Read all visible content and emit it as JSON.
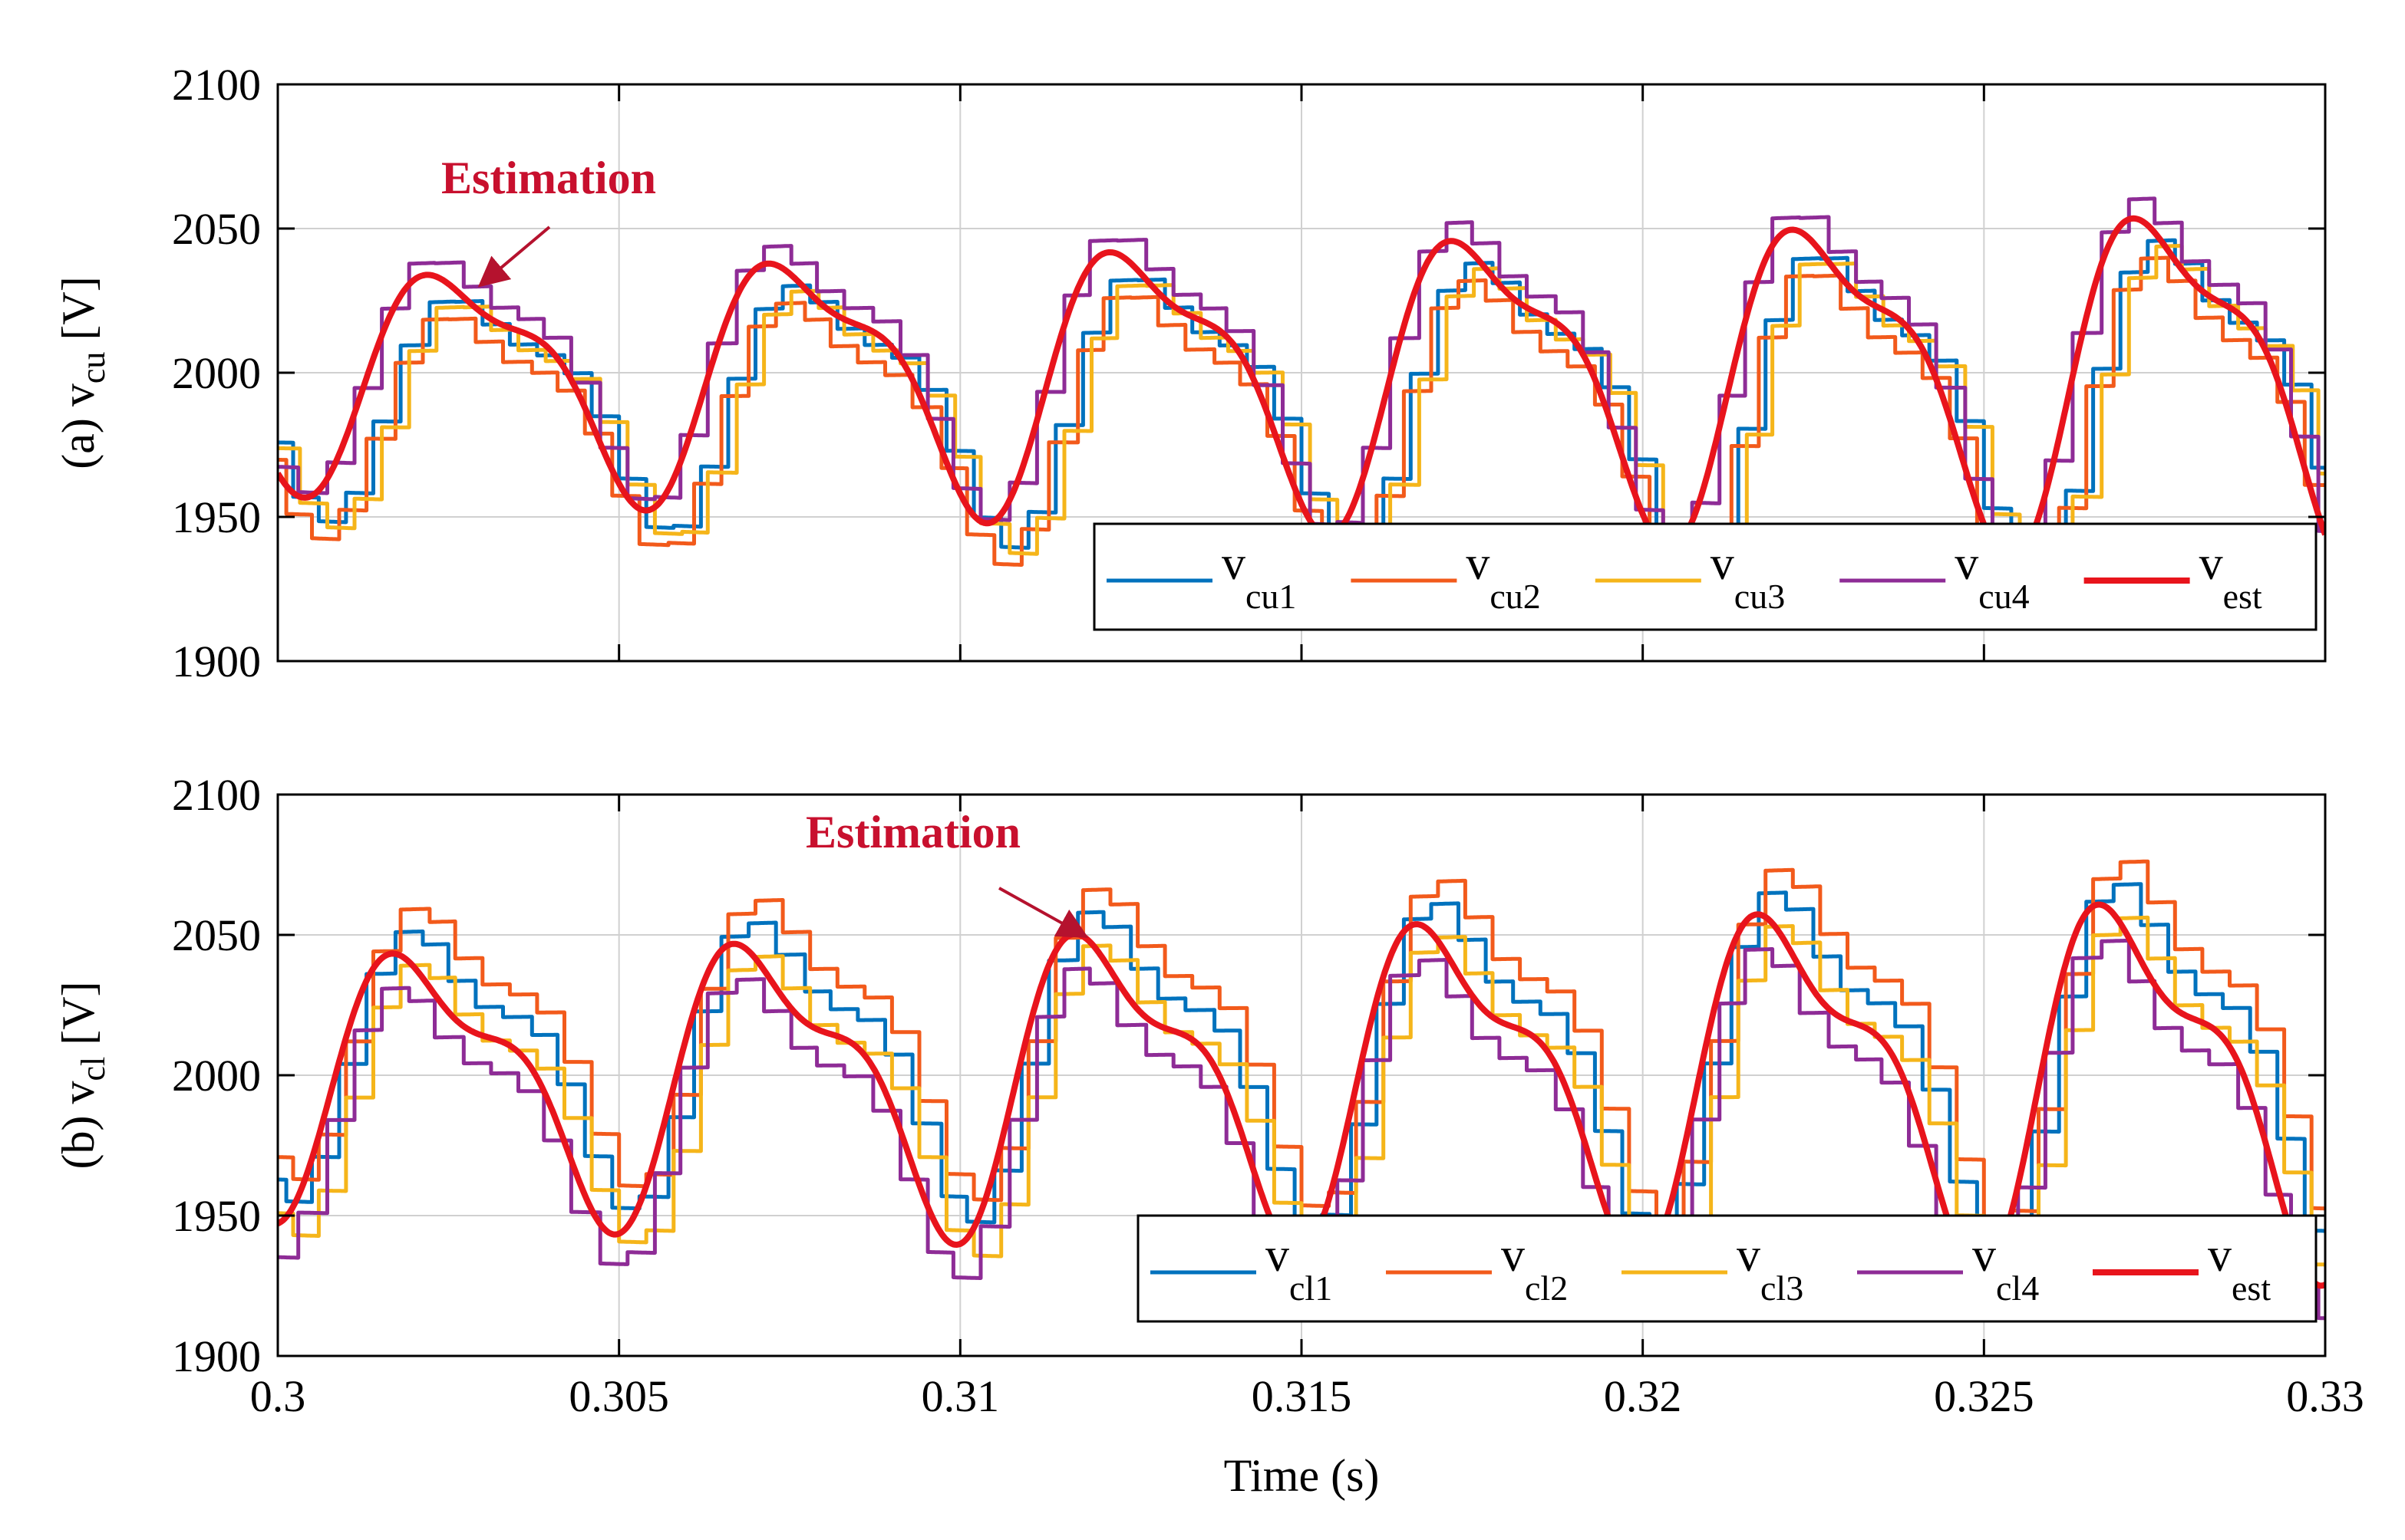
{
  "colors": {
    "s1": "#0072BD",
    "s2": "#F25A1B",
    "s3": "#F5B51A",
    "s4": "#8E2C96",
    "est": "#E8141C",
    "grid": "#d0d0d0",
    "annot": "#c8102e",
    "arrow": "#b5122e"
  },
  "chart_data": [
    {
      "type": "line",
      "panel_label": "(a)",
      "ylabel_main": "v",
      "ylabel_sub": "cu",
      "ylabel_unit": "[V]",
      "xlim": [
        0.3,
        0.33
      ],
      "ylim": [
        1900,
        2100
      ],
      "xticks": [
        0.3,
        0.305,
        0.31,
        0.315,
        0.32,
        0.325,
        0.33
      ],
      "xtick_labels": [
        "0.3",
        "0.305",
        "0.31",
        "0.315",
        "0.32",
        "0.325",
        "0.33"
      ],
      "yticks": [
        1900,
        1950,
        2000,
        2050,
        2100
      ],
      "ytick_labels": [
        "1900",
        "1950",
        "2000",
        "2050",
        "2100"
      ],
      "grid": true,
      "legend_placement": "bottom-right",
      "annotation": {
        "text": "Estimation",
        "points_to": [
          0.303,
          2031
        ]
      },
      "model": {
        "mean": 2000,
        "amp_start": 33,
        "amp_end": 55,
        "drift_start": 0,
        "drift_end": 2,
        "period": 0.005,
        "phase": 0.0027,
        "h2": 0.35,
        "h2_phase": 3.9
      },
      "series": [
        {
          "name": "v",
          "sub": "cu1",
          "color_key": "s1",
          "offset": -8,
          "lag": 0.0002,
          "scale": 1.0,
          "step": 0.0004
        },
        {
          "name": "v",
          "sub": "cu2",
          "color_key": "s2",
          "offset": -14,
          "lag": 0.0001,
          "scale": 1.0,
          "step": 0.0004
        },
        {
          "name": "v",
          "sub": "cu3",
          "color_key": "s3",
          "offset": -10,
          "lag": 0.0003,
          "scale": 1.0,
          "step": 0.0004
        },
        {
          "name": "v",
          "sub": "cu4",
          "color_key": "s4",
          "offset": 4,
          "lag": -0.0001,
          "scale": 1.05,
          "step": 0.0004
        },
        {
          "name": "v",
          "sub": "est",
          "color_key": "est",
          "offset": 0,
          "lag": 0.0,
          "scale": 1.0,
          "step": 0,
          "bold": true
        }
      ]
    },
    {
      "type": "line",
      "panel_label": "(b)",
      "ylabel_main": "v",
      "ylabel_sub": "cl",
      "ylabel_unit": "[V]",
      "xlabel": "Time (s)",
      "xlim": [
        0.3,
        0.33
      ],
      "ylim": [
        1900,
        2100
      ],
      "xticks": [
        0.3,
        0.305,
        0.31,
        0.315,
        0.32,
        0.325,
        0.33
      ],
      "xtick_labels": [
        "0.3",
        "0.305",
        "0.31",
        "0.315",
        "0.32",
        "0.325",
        "0.33"
      ],
      "yticks": [
        1900,
        1950,
        2000,
        2050,
        2100
      ],
      "ytick_labels": [
        "1900",
        "1950",
        "2000",
        "2050",
        "2100"
      ],
      "grid": true,
      "legend_placement": "bottom-right",
      "annotation": {
        "text": "Estimation",
        "points_to": [
          0.3118,
          2050
        ]
      },
      "model": {
        "mean": 2000,
        "amp_start": 40,
        "amp_end": 58,
        "drift_start": 0,
        "drift_end": 2,
        "period": 0.005,
        "phase": 0.0022,
        "h2": -0.4,
        "h2_phase": 0.6
      },
      "series": [
        {
          "name": "v",
          "sub": "cl1",
          "color_key": "s1",
          "offset": 8,
          "lag": 0.0001,
          "scale": 1.0,
          "step": 0.0004
        },
        {
          "name": "v",
          "sub": "cl2",
          "color_key": "s2",
          "offset": 16,
          "lag": 0.0002,
          "scale": 1.0,
          "step": 0.0004
        },
        {
          "name": "v",
          "sub": "cl3",
          "color_key": "s3",
          "offset": -4,
          "lag": 0.0002,
          "scale": 1.0,
          "step": 0.0004
        },
        {
          "name": "v",
          "sub": "cl4",
          "color_key": "s4",
          "offset": -12,
          "lag": -0.0001,
          "scale": 1.0,
          "step": 0.0004
        },
        {
          "name": "v",
          "sub": "est",
          "color_key": "est",
          "offset": 0,
          "lag": 0.0,
          "scale": 1.0,
          "step": 0,
          "bold": true
        }
      ]
    }
  ]
}
